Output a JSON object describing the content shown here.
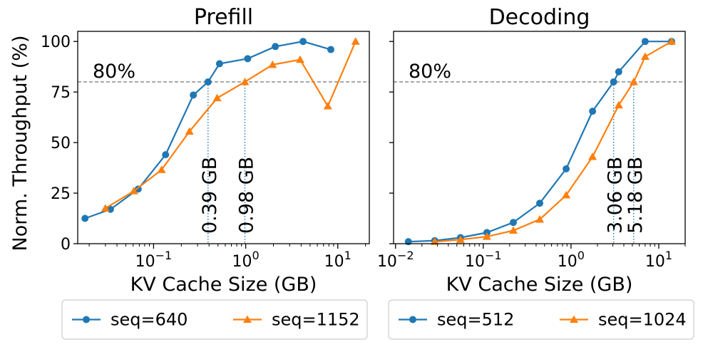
{
  "ylabel": "Norm. Throughput (%)",
  "colors": {
    "blue": "#1f77b4",
    "orange": "#ff7f0e"
  },
  "chart_data": [
    {
      "type": "line",
      "title": "Prefill",
      "xlabel": "KV Cache Size (GB)",
      "xscale": "log",
      "xlim": [
        0.015,
        22
      ],
      "ylim": [
        0,
        105
      ],
      "yticks": [
        0,
        25,
        50,
        75,
        100
      ],
      "xticks": [
        {
          "value": 0.1,
          "base": "10",
          "exp": "−1"
        },
        {
          "value": 1,
          "base": "10",
          "exp": "0"
        },
        {
          "value": 10,
          "base": "10",
          "exp": "1"
        }
      ],
      "reference_line": {
        "y": 80,
        "label": "80%"
      },
      "annotations": [
        {
          "x": 0.39,
          "text": "0.39 GB"
        },
        {
          "x": 0.98,
          "text": "0.98 GB"
        }
      ],
      "series": [
        {
          "name": "seq=640",
          "color": "#1f77b4",
          "marker": "circle",
          "x": [
            0.018,
            0.034,
            0.068,
            0.135,
            0.27,
            0.39,
            0.52,
            1.05,
            2.1,
            4.2,
            8.4
          ],
          "y": [
            12.5,
            17,
            27,
            44,
            73.5,
            80,
            89,
            91.5,
            97.5,
            100,
            96
          ]
        },
        {
          "name": "seq=1152",
          "color": "#ff7f0e",
          "marker": "triangle",
          "x": [
            0.03,
            0.061,
            0.122,
            0.245,
            0.49,
            0.98,
            1.96,
            3.9,
            7.8,
            15.6
          ],
          "y": [
            17.5,
            26,
            36.5,
            55.5,
            72,
            80,
            88.5,
            91,
            68,
            100
          ]
        }
      ],
      "legend": {
        "location": "below",
        "entries": [
          "seq=640",
          "seq=1152"
        ]
      }
    },
    {
      "type": "line",
      "title": "Decoding",
      "xlabel": "KV Cache Size (GB)",
      "xscale": "log",
      "xlim": [
        0.0095,
        20
      ],
      "ylim": [
        0,
        105
      ],
      "yticks": [
        0,
        25,
        50,
        75,
        100
      ],
      "xticks": [
        {
          "value": 0.01,
          "base": "10",
          "exp": "−2"
        },
        {
          "value": 0.1,
          "base": "10",
          "exp": "−1"
        },
        {
          "value": 1,
          "base": "10",
          "exp": "0"
        },
        {
          "value": 10,
          "base": "10",
          "exp": "1"
        }
      ],
      "reference_line": {
        "y": 80,
        "label": "80%"
      },
      "annotations": [
        {
          "x": 3.06,
          "text": "3.06 GB"
        },
        {
          "x": 5.18,
          "text": "5.18 GB"
        }
      ],
      "series": [
        {
          "name": "seq=512",
          "color": "#1f77b4",
          "marker": "circle",
          "x": [
            0.014,
            0.028,
            0.055,
            0.11,
            0.22,
            0.44,
            0.88,
            1.76,
            3.06,
            3.5,
            7,
            14
          ],
          "y": [
            1,
            1.5,
            3,
            5.5,
            10.5,
            20,
            37,
            65.5,
            80,
            85,
            100,
            100
          ]
        },
        {
          "name": "seq=1024",
          "color": "#ff7f0e",
          "marker": "triangle",
          "x": [
            0.028,
            0.055,
            0.11,
            0.22,
            0.44,
            0.88,
            1.76,
            3.5,
            5.18,
            7,
            14
          ],
          "y": [
            1,
            2,
            3.5,
            6.5,
            12,
            24,
            43,
            68.5,
            80,
            92.5,
            100
          ]
        }
      ],
      "legend": {
        "location": "below",
        "entries": [
          "seq=512",
          "seq=1024"
        ]
      }
    }
  ]
}
